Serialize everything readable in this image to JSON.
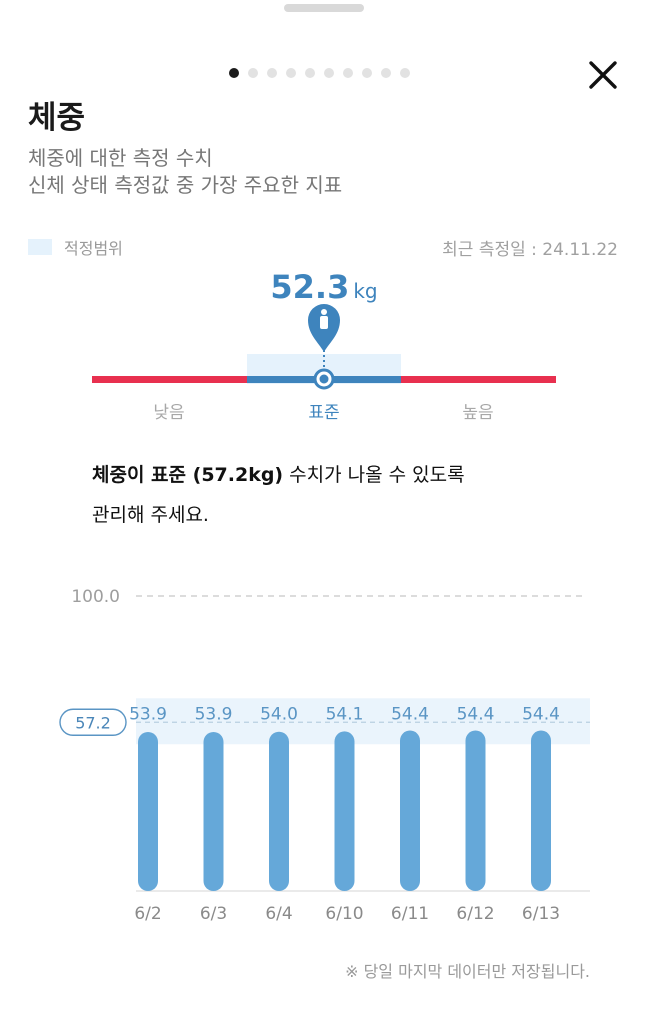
{
  "header": {
    "page_indicator": {
      "count": 10,
      "active": 0
    },
    "close_label": "닫기"
  },
  "info": {
    "title": "체중",
    "desc_line1": "체중에 대한 측정 수치",
    "desc_line2": "신체 상태 측정값 중 가장 주요한 지표"
  },
  "legend": {
    "label": "적정범위",
    "recent": "최근 측정일 : 24.11.22"
  },
  "current": {
    "value": "52.3",
    "unit": "kg"
  },
  "gauge": {
    "labels": [
      "낮음",
      "표준",
      "높음"
    ],
    "colors": {
      "low": "#e8304f",
      "standard": "#3e84bd",
      "high": "#e8304f",
      "band": "#e5f2fc"
    },
    "position_fraction": 0.5
  },
  "advice": {
    "bold": "체중이 표준 (57.2kg)",
    "rest": " 수치가 나올 수 있도록",
    "line2": "관리해 주세요."
  },
  "chart_data": {
    "type": "bar",
    "categories": [
      "6/2",
      "6/3",
      "6/4",
      "6/10",
      "6/11",
      "6/12",
      "6/13"
    ],
    "values": [
      53.9,
      53.9,
      54.0,
      54.1,
      54.4,
      54.4,
      54.4
    ],
    "value_labels": [
      "53.9",
      "53.9",
      "54.0",
      "54.1",
      "54.4",
      "54.4",
      "54.4"
    ],
    "ylim": [
      0,
      100
    ],
    "max_line_label": "100.0",
    "target_label": "57.2",
    "target": 57.2,
    "bar_color": "#65a8d9",
    "band_color": "#eaf4fc",
    "xlabel": "",
    "ylabel": ""
  },
  "footer": {
    "note": "※ 당일 마지막 데이터만 저장됩니다."
  }
}
